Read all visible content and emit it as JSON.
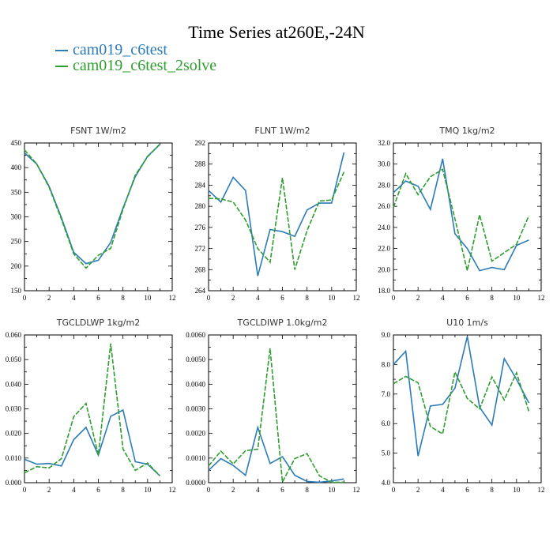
{
  "title": "Time Series at260E,-24N",
  "legend": [
    {
      "name": "cam019_c6test",
      "color": "#2b7bb9"
    },
    {
      "name": "cam019_c6test_2solve",
      "color": "#2e9e2e"
    }
  ],
  "chart_data": [
    {
      "type": "line",
      "title": "FSNT   1W/m2",
      "x": [
        0,
        1,
        2,
        3,
        4,
        5,
        6,
        7,
        8,
        9,
        10,
        11
      ],
      "xlim": [
        0,
        12
      ],
      "xticks": [
        0,
        2,
        4,
        6,
        8,
        10,
        12
      ],
      "ylim": [
        150,
        450
      ],
      "yticks": [
        150,
        200,
        250,
        300,
        350,
        400,
        450
      ],
      "ytick_labels": [
        "150",
        "200",
        "250",
        "300",
        "350",
        "400",
        "450"
      ],
      "series": [
        {
          "name": "cam019_c6test",
          "values": [
            430,
            407,
            362,
            298,
            228,
            205,
            212,
            248,
            318,
            382,
            423,
            447
          ]
        },
        {
          "name": "cam019_c6test_2solve",
          "values": [
            436,
            407,
            360,
            295,
            225,
            196,
            222,
            236,
            315,
            385,
            422,
            448
          ]
        }
      ]
    },
    {
      "type": "line",
      "title": "FLNT   1W/m2",
      "x": [
        0,
        1,
        2,
        3,
        4,
        5,
        6,
        7,
        8,
        9,
        10,
        11
      ],
      "xlim": [
        0,
        12
      ],
      "xticks": [
        0,
        2,
        4,
        6,
        8,
        10,
        12
      ],
      "ylim": [
        264,
        292
      ],
      "yticks": [
        264,
        268,
        272,
        276,
        280,
        284,
        288,
        292
      ],
      "ytick_labels": [
        "264",
        "268",
        "272",
        "276",
        "280",
        "284",
        "288",
        "292"
      ],
      "series": [
        {
          "name": "cam019_c6test",
          "values": [
            283.0,
            280.8,
            285.5,
            283.0,
            266.8,
            275.6,
            275.2,
            274.3,
            279.3,
            280.6,
            280.6,
            290.2
          ]
        },
        {
          "name": "cam019_c6test_2solve",
          "values": [
            281.5,
            281.4,
            280.8,
            277.4,
            272.0,
            269.4,
            285.4,
            268.0,
            275.4,
            281.0,
            281.2,
            286.5
          ]
        }
      ]
    },
    {
      "type": "line",
      "title": "TMQ   1kg/m2",
      "x": [
        0,
        1,
        2,
        3,
        4,
        5,
        6,
        7,
        8,
        9,
        10,
        11
      ],
      "xlim": [
        0,
        12
      ],
      "xticks": [
        0,
        2,
        4,
        6,
        8,
        10,
        12
      ],
      "ylim": [
        18,
        32
      ],
      "yticks": [
        18,
        20,
        22,
        24,
        26,
        28,
        30,
        32
      ],
      "ytick_labels": [
        "18.0",
        "20.0",
        "22.0",
        "24.0",
        "26.0",
        "28.0",
        "30.0",
        "32.0"
      ],
      "series": [
        {
          "name": "cam019_c6test",
          "values": [
            27.3,
            28.4,
            27.9,
            25.7,
            30.5,
            23.4,
            22.0,
            19.9,
            20.2,
            20.0,
            22.3,
            22.8
          ]
        },
        {
          "name": "cam019_c6test_2solve",
          "values": [
            25.9,
            29.1,
            27.1,
            28.8,
            29.5,
            24.8,
            19.9,
            25.2,
            20.8,
            21.6,
            22.4,
            25.1
          ]
        }
      ]
    },
    {
      "type": "line",
      "title": "TGCLDLWP   1kg/m2",
      "x": [
        0,
        1,
        2,
        3,
        4,
        5,
        6,
        7,
        8,
        9,
        10,
        11
      ],
      "xlim": [
        0,
        12
      ],
      "xticks": [
        0,
        2,
        4,
        6,
        8,
        10,
        12
      ],
      "ylim": [
        0,
        0.06
      ],
      "yticks": [
        0,
        0.01,
        0.02,
        0.03,
        0.04,
        0.05,
        0.06
      ],
      "ytick_labels": [
        "0.000",
        "0.010",
        "0.020",
        "0.030",
        "0.040",
        "0.050",
        "0.060"
      ],
      "series": [
        {
          "name": "cam019_c6test",
          "values": [
            0.0095,
            0.0075,
            0.0078,
            0.0068,
            0.0175,
            0.0225,
            0.0112,
            0.027,
            0.0295,
            0.0085,
            0.0075,
            0.0028
          ]
        },
        {
          "name": "cam019_c6test_2solve",
          "values": [
            0.004,
            0.0065,
            0.006,
            0.0098,
            0.0268,
            0.0322,
            0.0112,
            0.0565,
            0.0137,
            0.005,
            0.008,
            0.0028
          ]
        }
      ]
    },
    {
      "type": "line",
      "title": "TGCLDIWP   1.0kg/m2",
      "x": [
        0,
        1,
        2,
        3,
        4,
        5,
        6,
        7,
        8,
        9,
        10,
        11
      ],
      "xlim": [
        0,
        12
      ],
      "xticks": [
        0,
        2,
        4,
        6,
        8,
        10,
        12
      ],
      "ylim": [
        0,
        0.006
      ],
      "yticks": [
        0,
        0.001,
        0.002,
        0.003,
        0.004,
        0.005,
        0.006
      ],
      "ytick_labels": [
        "0.0000",
        "0.0010",
        "0.0020",
        "0.0030",
        "0.0040",
        "0.0050",
        "0.0060"
      ],
      "series": [
        {
          "name": "cam019_c6test",
          "values": [
            0.0005,
            0.00098,
            0.0007,
            0.0003,
            0.00225,
            0.00078,
            0.00106,
            0.0003,
            5e-05,
            2e-05,
            7e-05,
            0.00015
          ]
        },
        {
          "name": "cam019_c6test_2solve",
          "values": [
            0.00068,
            0.00128,
            0.00076,
            0.0013,
            0.00136,
            0.00545,
            3e-05,
            0.00098,
            0.00118,
            0.00028,
            2e-05,
            2e-05
          ]
        }
      ]
    },
    {
      "type": "line",
      "title": "U10   1m/s",
      "x": [
        0,
        1,
        2,
        3,
        4,
        5,
        6,
        7,
        8,
        9,
        10,
        11
      ],
      "xlim": [
        0,
        12
      ],
      "xticks": [
        0,
        2,
        4,
        6,
        8,
        10,
        12
      ],
      "ylim": [
        4,
        9
      ],
      "yticks": [
        4,
        5,
        6,
        7,
        8,
        9
      ],
      "ytick_labels": [
        "4.0",
        "5.0",
        "6.0",
        "7.0",
        "8.0",
        "9.0"
      ],
      "series": [
        {
          "name": "cam019_c6test",
          "values": [
            8.0,
            8.45,
            4.9,
            6.6,
            6.65,
            7.2,
            8.95,
            6.55,
            5.95,
            8.2,
            7.5,
            6.7
          ]
        },
        {
          "name": "cam019_c6test_2solve",
          "values": [
            7.35,
            7.6,
            7.38,
            5.9,
            5.65,
            7.75,
            6.85,
            6.5,
            7.58,
            6.8,
            7.72,
            6.42
          ]
        }
      ]
    }
  ]
}
